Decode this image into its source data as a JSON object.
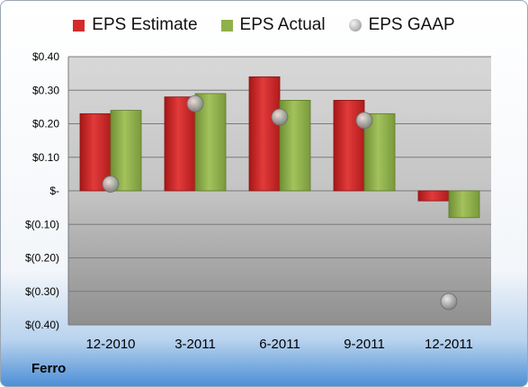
{
  "company": "Ferro",
  "chart_data": {
    "type": "bar",
    "categories": [
      "12-2010",
      "3-2011",
      "6-2011",
      "9-2011",
      "12-2011"
    ],
    "series": [
      {
        "name": "EPS Estimate",
        "type": "bar",
        "color": "#d42a2a",
        "values": [
          0.23,
          0.28,
          0.34,
          0.27,
          -0.03
        ]
      },
      {
        "name": "EPS Actual",
        "type": "bar",
        "color": "#8fb04a",
        "values": [
          0.24,
          0.29,
          0.27,
          0.23,
          -0.08
        ]
      },
      {
        "name": "EPS GAAP",
        "type": "scatter",
        "color": "#a9a9a9",
        "values": [
          0.02,
          0.26,
          0.22,
          0.21,
          -0.33
        ]
      }
    ],
    "yticks": [
      0.4,
      0.3,
      0.2,
      0.1,
      0,
      -0.1,
      -0.2,
      -0.3,
      -0.4
    ],
    "ytick_labels": [
      "$0.40",
      "$0.30",
      "$0.20",
      "$0.10",
      "$-",
      "$(0.10)",
      "$(0.20)",
      "$(0.30)",
      "$(0.40)"
    ],
    "ylim": [
      -0.4,
      0.4
    ],
    "grid": true,
    "legend_position": "top"
  }
}
